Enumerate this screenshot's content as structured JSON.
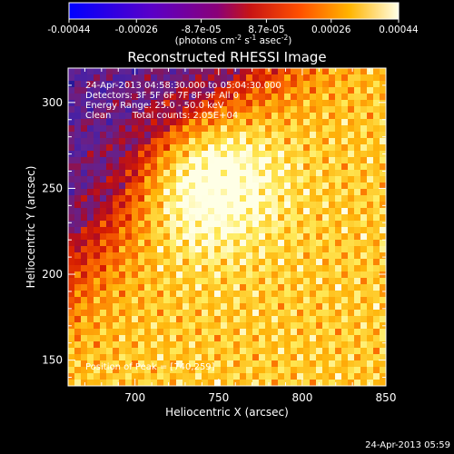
{
  "colorbar": {
    "ticks": [
      "-0.00044",
      "-0.00026",
      "-8.7e-05",
      "8.7e-05",
      "0.00026",
      "0.00044"
    ],
    "values": [
      -0.00044,
      -0.00026,
      -8.7e-05,
      8.7e-05,
      0.00026,
      0.00044
    ],
    "unit_base": "(photons cm",
    "unit_exp1": "-2",
    "unit_mid": " s",
    "unit_exp2": "-1",
    "unit_tail": " asec",
    "unit_exp3": "-2",
    "unit_close": ")",
    "colormap": "heat (blue-purple-red-orange-yellow-white)"
  },
  "chart_data": {
    "type": "heatmap",
    "title": "Reconstructed RHESSI Image",
    "xlabel": "Heliocentric X (arcsec)",
    "ylabel": "Heliocentric Y (arcsec)",
    "xlim": [
      660,
      850
    ],
    "ylim": [
      135,
      320
    ],
    "x_ticks": [
      "700",
      "750",
      "800",
      "850"
    ],
    "x_tick_values": [
      700,
      750,
      800,
      850
    ],
    "y_ticks": [
      "150",
      "200",
      "250",
      "300"
    ],
    "y_tick_values": [
      150,
      200,
      250,
      300
    ],
    "peak": [
      740,
      259
    ],
    "annotations": {
      "time": "24-Apr-2013 04:58:30.000 to 05:04:30.000",
      "detectors": "Detectors: 3F 5F 6F 7F 8F 9F All 0",
      "energy": "Energy Range: 25.0 - 50.0 keV",
      "algorithm": "Clean",
      "counts": "Total counts: 2.05E+04",
      "peak_label": "Position of Peak = [740,259]"
    }
  },
  "footer": {
    "timestamp": "24-Apr-2013 05:59"
  }
}
